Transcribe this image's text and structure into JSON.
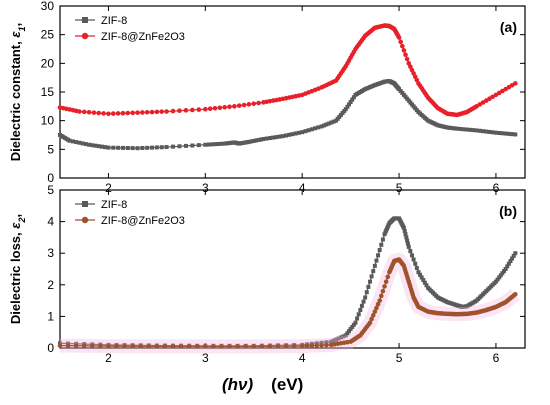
{
  "chart_data": [
    {
      "type": "line",
      "panel_label": "(a)",
      "ylabel_text": "Dielectric constant, ",
      "ylabel_symbol": "ε",
      "ylabel_sub": "1",
      "ylabel_suffix": ",",
      "xlim": [
        1.5,
        6.3
      ],
      "ylim": [
        0,
        30
      ],
      "x_ticks": [
        "2",
        "3",
        "4",
        "5",
        "6"
      ],
      "y_ticks": [
        "0",
        "5",
        "10",
        "15",
        "20",
        "25",
        "30"
      ],
      "legend_position": "top-left",
      "series": [
        {
          "name": "ZIF-8",
          "color": "#5a5a5a",
          "marker": "square",
          "x": [
            1.5,
            1.6,
            1.8,
            2.0,
            2.3,
            2.6,
            3.0,
            3.2,
            3.3,
            3.35,
            3.45,
            3.6,
            3.8,
            4.0,
            4.2,
            4.35,
            4.45,
            4.55,
            4.65,
            4.75,
            4.85,
            4.9,
            4.95,
            5.0,
            5.1,
            5.2,
            5.3,
            5.4,
            5.5,
            5.6,
            5.8,
            6.0,
            6.2
          ],
          "y": [
            7.5,
            6.5,
            5.8,
            5.3,
            5.2,
            5.4,
            5.8,
            6.0,
            6.2,
            6.0,
            6.3,
            6.8,
            7.3,
            8.0,
            9.0,
            10.0,
            12.0,
            14.5,
            15.5,
            16.2,
            16.8,
            16.9,
            16.5,
            15.5,
            13.5,
            11.5,
            10.0,
            9.2,
            8.8,
            8.6,
            8.3,
            7.9,
            7.6
          ]
        },
        {
          "name": "ZIF-8@ZnFe2O3",
          "color": "#e8202a",
          "marker": "circle",
          "x": [
            1.5,
            1.7,
            2.0,
            2.3,
            2.6,
            3.0,
            3.3,
            3.6,
            3.8,
            4.0,
            4.2,
            4.35,
            4.45,
            4.55,
            4.65,
            4.75,
            4.85,
            4.9,
            4.95,
            5.0,
            5.1,
            5.2,
            5.3,
            5.4,
            5.5,
            5.6,
            5.7,
            5.8,
            6.0,
            6.2
          ],
          "y": [
            12.3,
            11.6,
            11.2,
            11.4,
            11.6,
            12.0,
            12.5,
            13.2,
            13.8,
            14.5,
            15.8,
            17.0,
            19.5,
            22.5,
            24.8,
            26.2,
            26.6,
            26.5,
            26.0,
            24.5,
            20.0,
            16.5,
            14.0,
            12.2,
            11.2,
            11.0,
            11.5,
            12.5,
            14.5,
            16.5
          ]
        }
      ]
    },
    {
      "type": "line",
      "panel_label": "(b)",
      "ylabel_text": "Dielectric loss, ",
      "ylabel_symbol": "ε",
      "ylabel_sub": "2",
      "ylabel_suffix": ",",
      "xlabel_symbol": "(hν)",
      "xlabel_unit": "(eV)",
      "xlim": [
        1.5,
        6.3
      ],
      "ylim": [
        0,
        5
      ],
      "x_ticks": [
        "2",
        "3",
        "4",
        "5",
        "6"
      ],
      "y_ticks": [
        "0",
        "1",
        "2",
        "3",
        "4",
        "5"
      ],
      "legend_position": "top-left",
      "series": [
        {
          "name": "ZIF-8",
          "color": "#5a5a5a",
          "marker": "square",
          "x": [
            1.5,
            2.0,
            2.5,
            3.0,
            3.5,
            4.0,
            4.3,
            4.45,
            4.55,
            4.65,
            4.75,
            4.85,
            4.9,
            4.95,
            5.0,
            5.05,
            5.1,
            5.2,
            5.3,
            5.4,
            5.5,
            5.6,
            5.65,
            5.7,
            5.8,
            5.9,
            6.0,
            6.1,
            6.2
          ],
          "y": [
            0.15,
            0.1,
            0.08,
            0.07,
            0.07,
            0.1,
            0.2,
            0.4,
            0.8,
            1.6,
            2.6,
            3.6,
            3.95,
            4.1,
            4.1,
            3.8,
            3.2,
            2.4,
            1.9,
            1.6,
            1.45,
            1.35,
            1.3,
            1.32,
            1.5,
            1.8,
            2.1,
            2.5,
            3.0
          ]
        },
        {
          "name": "ZIF-8@ZnFe2O3",
          "color": "#a0522d",
          "marker": "circle",
          "x": [
            1.5,
            2.0,
            2.5,
            3.0,
            3.5,
            4.0,
            4.3,
            4.5,
            4.6,
            4.7,
            4.8,
            4.9,
            4.95,
            5.0,
            5.05,
            5.1,
            5.15,
            5.2,
            5.3,
            5.4,
            5.5,
            5.6,
            5.7,
            5.8,
            5.9,
            6.0,
            6.1,
            6.2
          ],
          "y": [
            0.08,
            0.06,
            0.05,
            0.05,
            0.05,
            0.06,
            0.1,
            0.2,
            0.4,
            0.8,
            1.5,
            2.4,
            2.75,
            2.8,
            2.6,
            2.1,
            1.6,
            1.3,
            1.15,
            1.1,
            1.08,
            1.07,
            1.08,
            1.12,
            1.2,
            1.3,
            1.45,
            1.7
          ]
        }
      ]
    }
  ]
}
